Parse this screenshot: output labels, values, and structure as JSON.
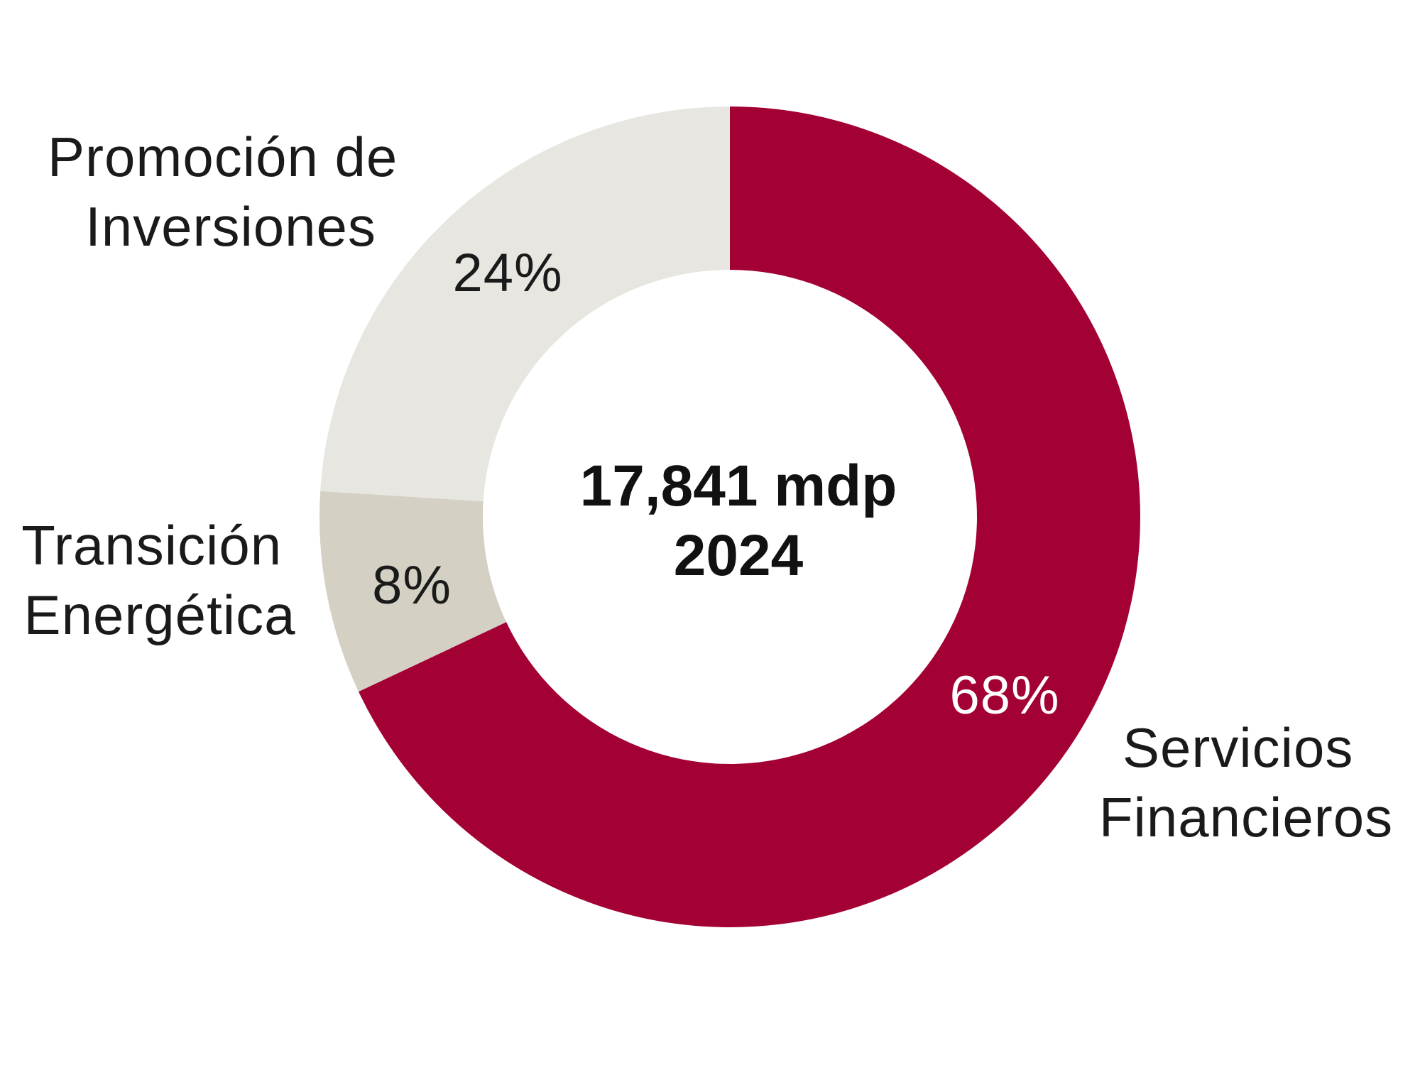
{
  "chart_data": {
    "type": "pie",
    "variant": "donut",
    "start_angle_deg": 0,
    "direction": "clockwise",
    "center_text": {
      "line1": "17,841 mdp",
      "line2": "2024"
    },
    "slices": [
      {
        "label_lines": [
          "Servicios",
          "Financieros"
        ],
        "value": 68,
        "display": "68%",
        "color": "#a30034",
        "text_color": "#ffffff"
      },
      {
        "label_lines": [
          "Transición",
          "Energética"
        ],
        "value": 8,
        "display": "8%",
        "color": "#d4d0c4",
        "text_color": "#1a1a1a"
      },
      {
        "label_lines": [
          "Promoción de",
          "Inversiones"
        ],
        "value": 24,
        "display": "24%",
        "color": "#e7e6e0",
        "text_color": "#1a1a1a"
      }
    ]
  }
}
